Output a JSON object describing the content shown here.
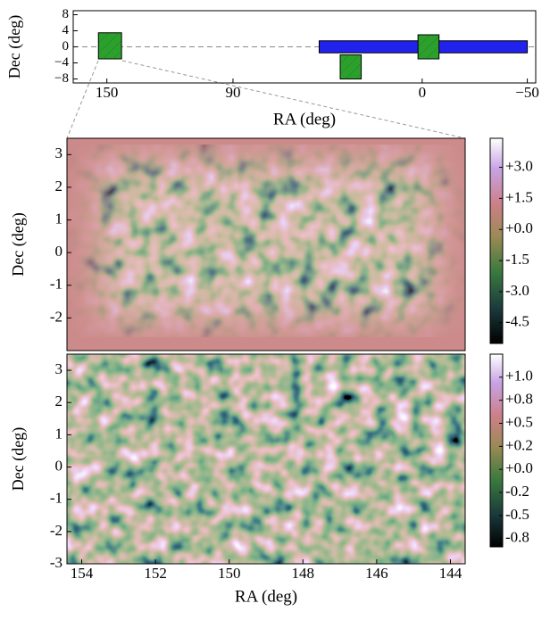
{
  "chart_data": [
    {
      "type": "footprint",
      "xlabel": "RA (deg)",
      "ylabel": "Dec (deg)",
      "xlim": [
        166,
        -54
      ],
      "ylim": [
        -9,
        9
      ],
      "xticks": [
        150,
        90,
        0,
        {
          "value": -50,
          "label": "−50"
        }
      ],
      "yticks": [
        8,
        4,
        0,
        {
          "value": -4,
          "label": "−4"
        },
        {
          "value": -8,
          "label": "−8"
        }
      ],
      "reference_line": 0,
      "regions": [
        {
          "ra": [
            154,
            143
          ],
          "dec": [
            -3,
            3.5
          ],
          "color": "#2ca02c"
        },
        {
          "ra": [
            49,
            -50
          ],
          "dec": [
            -1.5,
            1.5
          ],
          "color": "#2222ee"
        },
        {
          "ra": [
            39,
            29
          ],
          "dec": [
            -8,
            -2
          ],
          "color": "#2ca02c"
        },
        {
          "ra": [
            2,
            -8
          ],
          "dec": [
            -3,
            3
          ],
          "color": "#2ca02c"
        }
      ]
    },
    {
      "type": "heatmap",
      "ylabel": "Dec (deg)",
      "xlim": [
        154.4,
        143.6
      ],
      "ylim": [
        -3,
        3.5
      ],
      "yticks": [
        3,
        2,
        1,
        0,
        -1,
        -2
      ],
      "clim": [
        -5.5,
        4.4
      ],
      "cticks": [
        {
          "value": 3,
          "label": "+3.0"
        },
        {
          "value": 1.5,
          "label": "+1.5"
        },
        {
          "value": 0,
          "label": "+0.0"
        },
        {
          "value": -1.5,
          "label": "-1.5"
        },
        {
          "value": -3,
          "label": "-3.0"
        },
        {
          "value": -4.5,
          "label": "-4.5"
        }
      ]
    },
    {
      "type": "heatmap",
      "ylabel": "Dec (deg)",
      "xlabel": "RA (deg)",
      "xlim": [
        154.4,
        143.6
      ],
      "ylim": [
        -3,
        3.5
      ],
      "yticks": [
        3,
        2,
        1,
        0,
        -1,
        -2,
        -3
      ],
      "xticks": [
        154,
        152,
        150,
        148,
        146,
        144
      ],
      "clim": [
        -0.84,
        1.25
      ],
      "cticks": [
        {
          "value": 1,
          "label": "+1.0"
        },
        {
          "value": 0.75,
          "label": "+0.8"
        },
        {
          "value": 0.5,
          "label": "+0.5"
        },
        {
          "value": 0.25,
          "label": "+0.2"
        },
        {
          "value": 0,
          "label": "+0.0"
        },
        {
          "value": -0.25,
          "label": "-0.2"
        },
        {
          "value": -0.5,
          "label": "-0.5"
        },
        {
          "value": -0.75,
          "label": "-0.8"
        }
      ]
    }
  ]
}
